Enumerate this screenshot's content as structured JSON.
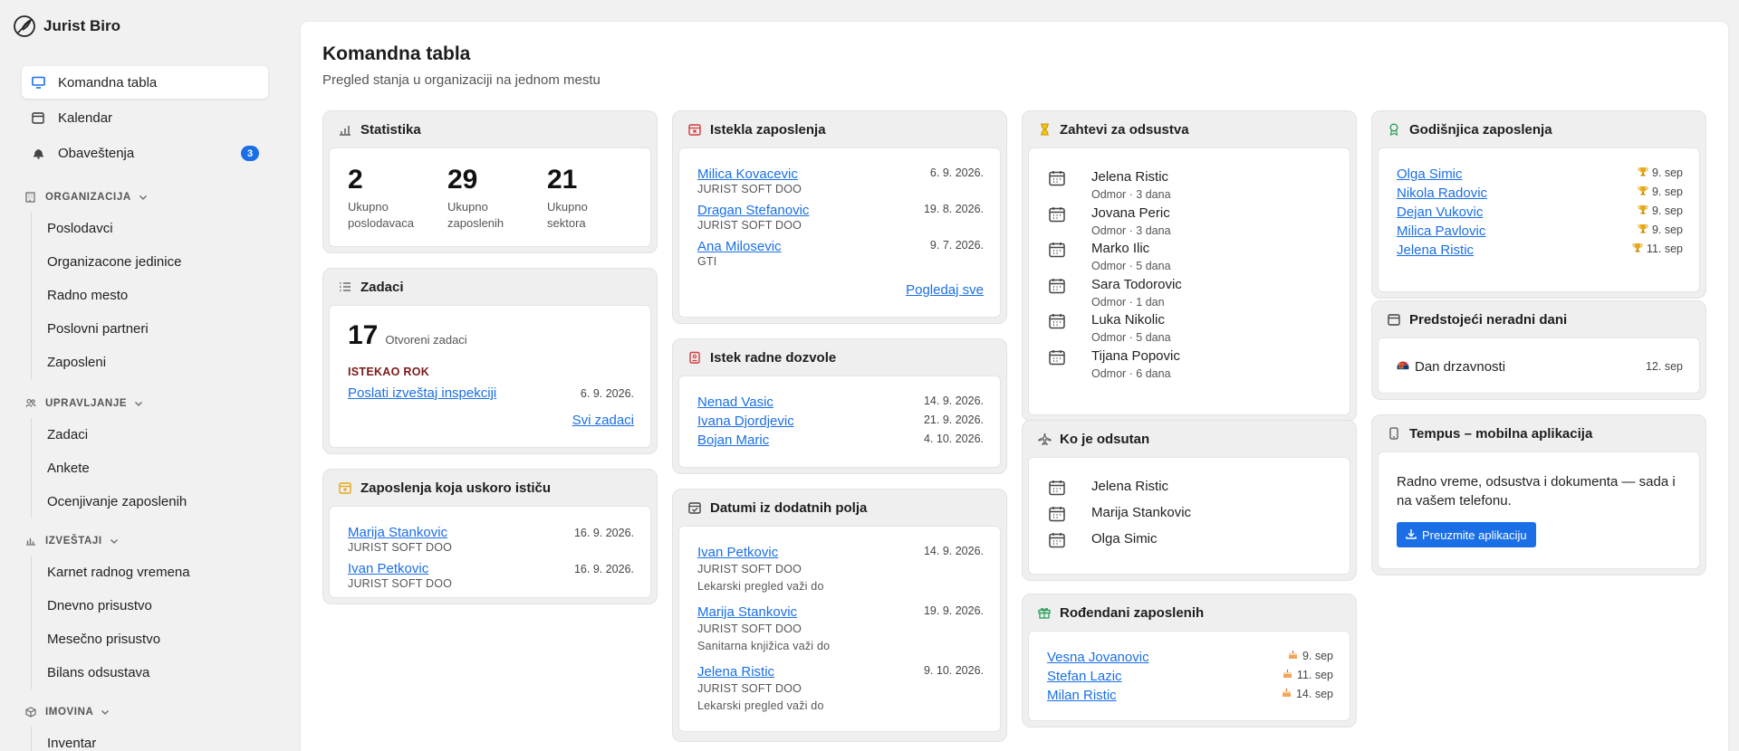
{
  "brand": {
    "name": "Jurist Biro"
  },
  "nav": {
    "top": [
      {
        "label": "Komandna tabla",
        "icon": "monitor-icon"
      },
      {
        "label": "Kalendar",
        "icon": "calendar-icon"
      },
      {
        "label": "Obaveštenja",
        "icon": "bell-icon",
        "badge": "3"
      }
    ],
    "sections": [
      {
        "title": "ORGANIZACIJA",
        "icon": "building-icon",
        "items": [
          "Poslodavci",
          "Organizacone jedinice",
          "Radno mesto",
          "Poslovni partneri",
          "Zaposleni"
        ]
      },
      {
        "title": "UPRAVLJANJE",
        "icon": "users-icon",
        "items": [
          "Zadaci",
          "Ankete",
          "Ocenjivanje zaposlenih"
        ]
      },
      {
        "title": "IZVEŠTAJI",
        "icon": "chart-icon",
        "items": [
          "Karnet radnog vremena",
          "Dnevno prisustvo",
          "Mesečno prisustvo",
          "Bilans odsustava"
        ]
      },
      {
        "title": "IMOVINA",
        "icon": "box-icon",
        "items": [
          "Inventar"
        ]
      }
    ]
  },
  "page": {
    "title": "Komandna tabla",
    "subtitle": "Pregled stanja u organizaciji na jednom mestu"
  },
  "statistika": {
    "title": "Statistika",
    "stats": [
      {
        "value": "2",
        "label": "Ukupno poslodavaca"
      },
      {
        "value": "29",
        "label": "Ukupno zaposlenih"
      },
      {
        "value": "21",
        "label": "Ukupno sektora"
      }
    ]
  },
  "zadaci": {
    "title": "Zadaci",
    "count": "17",
    "count_label": "Otvoreni zadaci",
    "overdue_label": "ISTEKAO ROK",
    "task": "Poslati izveštaj inspekciji",
    "task_date": "6. 9. 2026.",
    "all_link": "Svi zadaci"
  },
  "uskoro": {
    "title": "Zaposlenja koja uskoro ističu",
    "items": [
      {
        "name": "Marija Stankovic",
        "company": "JURIST SOFT DOO",
        "date": "16. 9. 2026."
      },
      {
        "name": "Ivan Petkovic",
        "company": "JURIST SOFT DOO",
        "date": "16. 9. 2026."
      }
    ]
  },
  "istekla": {
    "title": "Istekla zaposlenja",
    "items": [
      {
        "name": "Milica Kovacevic",
        "company": "JURIST SOFT DOO",
        "date": "6. 9. 2026."
      },
      {
        "name": "Dragan Stefanovic",
        "company": "JURIST SOFT DOO",
        "date": "19. 8. 2026."
      },
      {
        "name": "Ana Milosevic",
        "company": "GTI",
        "date": "9. 7. 2026."
      }
    ],
    "all_link": "Pogledaj sve"
  },
  "dozvole": {
    "title": "Istek radne dozvole",
    "items": [
      {
        "name": "Nenad Vasic",
        "date": "14. 9. 2026."
      },
      {
        "name": "Ivana Djordjevic",
        "date": "21. 9. 2026."
      },
      {
        "name": "Bojan Maric",
        "date": "4. 10. 2026."
      }
    ]
  },
  "datumi": {
    "title": "Datumi iz dodatnih polja",
    "items": [
      {
        "name": "Ivan Petkovic",
        "company": "JURIST SOFT DOO",
        "note": "Lekarski pregled važi do",
        "date": "14. 9. 2026."
      },
      {
        "name": "Marija Stankovic",
        "company": "JURIST SOFT DOO",
        "note": "Sanitarna knjižica važi do",
        "date": "19. 9. 2026."
      },
      {
        "name": "Jelena Ristic",
        "company": "JURIST SOFT DOO",
        "note": "Lekarski pregled važi do",
        "date": "9. 10. 2026."
      }
    ]
  },
  "zahtevi": {
    "title": "Zahtevi za odsustva",
    "items": [
      {
        "name": "Jelena Ristic",
        "detail": "Odmor · 3 dana"
      },
      {
        "name": "Jovana Peric",
        "detail": "Odmor · 3 dana"
      },
      {
        "name": "Marko Ilic",
        "detail": "Odmor · 5 dana"
      },
      {
        "name": "Sara Todorovic",
        "detail": "Odmor · 1 dan"
      },
      {
        "name": "Luka Nikolic",
        "detail": "Odmor · 5 dana"
      },
      {
        "name": "Tijana Popovic",
        "detail": "Odmor · 6 dana"
      }
    ]
  },
  "odsutan": {
    "title": "Ko je odsutan",
    "items": [
      "Jelena Ristic",
      "Marija Stankovic",
      "Olga Simic"
    ]
  },
  "rodjendani": {
    "title": "Rođendani zaposlenih",
    "items": [
      {
        "name": "Vesna Jovanovic",
        "date": "9. sep"
      },
      {
        "name": "Stefan Lazic",
        "date": "11. sep"
      },
      {
        "name": "Milan Ristic",
        "date": "14. sep"
      }
    ]
  },
  "godisnjica": {
    "title": "Godišnjica zaposlenja",
    "items": [
      {
        "name": "Olga Simic",
        "date": "9. sep"
      },
      {
        "name": "Nikola Radovic",
        "date": "9. sep"
      },
      {
        "name": "Dejan Vukovic",
        "date": "9. sep"
      },
      {
        "name": "Milica Pavlovic",
        "date": "9. sep"
      },
      {
        "name": "Jelena Ristic",
        "date": "11. sep"
      }
    ]
  },
  "neradni": {
    "title": "Predstojeći neradni dani",
    "holiday": "Dan drzavnosti",
    "date": "12. sep"
  },
  "tempus": {
    "title": "Tempus – mobilna aplikacija",
    "text": "Radno vreme, odsustva i dokumenta — sada i na vašem telefonu.",
    "button": "Preuzmite aplikaciju"
  },
  "colors": {
    "accent": "#1a6fe6",
    "danger": "#d33b3b",
    "warning": "#e6a91a",
    "success": "#2a9d5a"
  }
}
